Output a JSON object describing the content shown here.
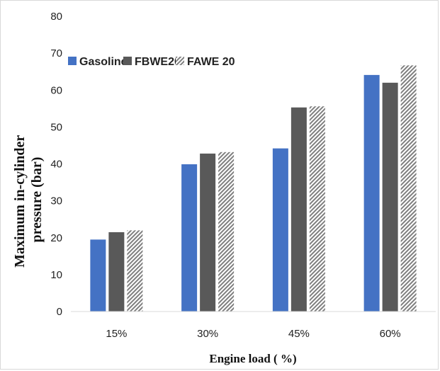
{
  "chart_data": {
    "type": "bar",
    "title": "",
    "xlabel": "Engine load ( %)",
    "ylabel_lines": [
      "Maximum in-cylinder",
      "pressure (bar)"
    ],
    "categories": [
      "15%",
      "30%",
      "45%",
      "60%"
    ],
    "ylim": [
      0,
      80
    ],
    "yticks": [
      "0",
      "10",
      "20",
      "30",
      "40",
      "50",
      "60",
      "70",
      "80"
    ],
    "grid": false,
    "legend_position": "top-left",
    "series": [
      {
        "name": "Gasoline",
        "color": "#4472c4",
        "pattern": "solid",
        "values": [
          19.5,
          39.9,
          44.2,
          64.1
        ]
      },
      {
        "name": "FBWE20",
        "color": "#595959",
        "pattern": "solid",
        "values": [
          21.5,
          42.8,
          55.3,
          62.0
        ]
      },
      {
        "name": "FAWE 20",
        "color": "#7f7f7f",
        "pattern": "diagonal-hatch",
        "values": [
          22.0,
          43.2,
          55.6,
          66.7
        ]
      }
    ]
  }
}
